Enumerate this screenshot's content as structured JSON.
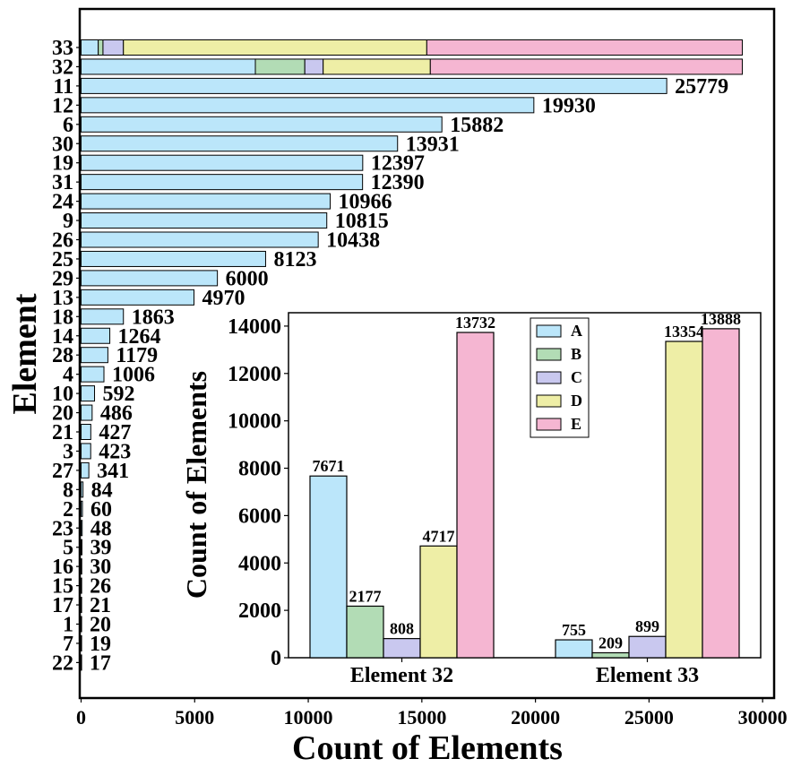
{
  "colors": {
    "A": "#bbe6fa",
    "B": "#b2dcb5",
    "C": "#c9c8ef",
    "D": "#eeeea6",
    "E": "#f5b6d2"
  },
  "chart_data": [
    {
      "type": "bar",
      "orientation": "horizontal",
      "stacked": true,
      "xlabel": "Count of Elements",
      "ylabel": "Element",
      "xlim": [
        0,
        30500
      ],
      "xticks": [
        0,
        5000,
        10000,
        15000,
        20000,
        25000,
        30000
      ],
      "xtick_labels": [
        "0",
        "5000",
        "10000",
        "15000",
        "20000",
        "25000",
        "30000"
      ],
      "categories": [
        "33",
        "32",
        "11",
        "12",
        "6",
        "30",
        "19",
        "31",
        "24",
        "9",
        "26",
        "25",
        "29",
        "13",
        "18",
        "14",
        "28",
        "4",
        "10",
        "20",
        "21",
        "3",
        "27",
        "8",
        "2",
        "23",
        "5",
        "16",
        "15",
        "17",
        "1",
        "7",
        "22"
      ],
      "series": [
        {
          "name": "A",
          "values": [
            755,
            7671,
            25779,
            19930,
            15882,
            13931,
            12397,
            12390,
            10966,
            10815,
            10438,
            8123,
            6000,
            4970,
            1863,
            1264,
            1179,
            1006,
            592,
            486,
            427,
            423,
            341,
            84,
            60,
            48,
            39,
            30,
            26,
            21,
            20,
            19,
            17
          ]
        },
        {
          "name": "B",
          "values": [
            209,
            2177,
            0,
            0,
            0,
            0,
            0,
            0,
            0,
            0,
            0,
            0,
            0,
            0,
            0,
            0,
            0,
            0,
            0,
            0,
            0,
            0,
            0,
            0,
            0,
            0,
            0,
            0,
            0,
            0,
            0,
            0,
            0
          ]
        },
        {
          "name": "C",
          "values": [
            899,
            808,
            0,
            0,
            0,
            0,
            0,
            0,
            0,
            0,
            0,
            0,
            0,
            0,
            0,
            0,
            0,
            0,
            0,
            0,
            0,
            0,
            0,
            0,
            0,
            0,
            0,
            0,
            0,
            0,
            0,
            0,
            0
          ]
        },
        {
          "name": "D",
          "values": [
            13354,
            4717,
            0,
            0,
            0,
            0,
            0,
            0,
            0,
            0,
            0,
            0,
            0,
            0,
            0,
            0,
            0,
            0,
            0,
            0,
            0,
            0,
            0,
            0,
            0,
            0,
            0,
            0,
            0,
            0,
            0,
            0,
            0
          ]
        },
        {
          "name": "E",
          "values": [
            13888,
            13732,
            0,
            0,
            0,
            0,
            0,
            0,
            0,
            0,
            0,
            0,
            0,
            0,
            0,
            0,
            0,
            0,
            0,
            0,
            0,
            0,
            0,
            0,
            0,
            0,
            0,
            0,
            0,
            0,
            0,
            0,
            0
          ]
        }
      ],
      "value_labels": [
        null,
        null,
        "25779",
        "19930",
        "15882",
        "13931",
        "12397",
        "12390",
        "10966",
        "10815",
        "10438",
        "8123",
        "6000",
        "4970",
        "1863",
        "1264",
        "1179",
        "1006",
        "592",
        "486",
        "427",
        "423",
        "341",
        "84",
        "60",
        "48",
        "39",
        "30",
        "26",
        "21",
        "20",
        "19",
        "17"
      ]
    },
    {
      "type": "bar",
      "orientation": "vertical",
      "inset": true,
      "ylabel": "Count of Elements",
      "xlabel": "",
      "ylim": [
        0,
        14600
      ],
      "yticks": [
        0,
        2000,
        4000,
        6000,
        8000,
        10000,
        12000,
        14000
      ],
      "ytick_labels": [
        "0",
        "2000",
        "4000",
        "6000",
        "8000",
        "10000",
        "12000",
        "14000"
      ],
      "categories": [
        "Element 32",
        "Element 33"
      ],
      "series": [
        {
          "name": "A",
          "values": [
            7671,
            755
          ]
        },
        {
          "name": "B",
          "values": [
            2177,
            209
          ]
        },
        {
          "name": "C",
          "values": [
            808,
            899
          ]
        },
        {
          "name": "D",
          "values": [
            4717,
            13354
          ]
        },
        {
          "name": "E",
          "values": [
            13732,
            13888
          ]
        }
      ],
      "legend": {
        "position": "upper-center",
        "labels": [
          "A",
          "B",
          "C",
          "D",
          "E"
        ]
      }
    }
  ]
}
